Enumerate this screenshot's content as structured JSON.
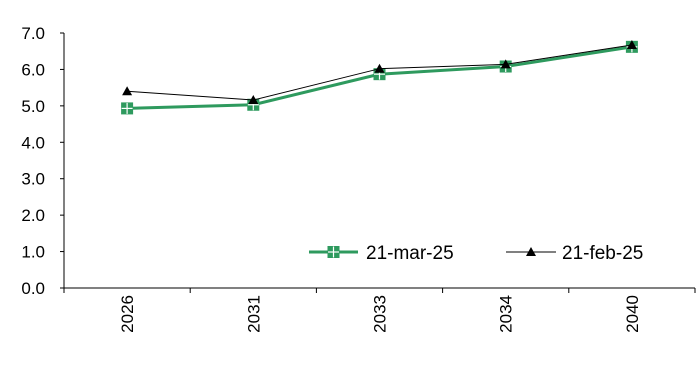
{
  "chart_data": {
    "type": "line",
    "title": "",
    "xlabel": "",
    "ylabel": "",
    "categories": [
      "2026",
      "2031",
      "2033",
      "2034",
      "2040"
    ],
    "ylim": [
      0,
      7
    ],
    "ytick_step": 1,
    "ytick_labels": [
      "0.0",
      "1.0",
      "2.0",
      "3.0",
      "4.0",
      "5.0",
      "6.0",
      "7.0"
    ],
    "grid": false,
    "legend_position": "lower-right",
    "series": [
      {
        "name": "21-mar-25",
        "values": [
          4.93,
          5.03,
          5.87,
          6.08,
          6.62
        ],
        "color": "#2e9a5e",
        "marker": "square-plus"
      },
      {
        "name": "21-feb-25",
        "values": [
          5.4,
          5.16,
          6.02,
          6.14,
          6.67
        ],
        "color": "#000000",
        "marker": "triangle"
      }
    ]
  }
}
